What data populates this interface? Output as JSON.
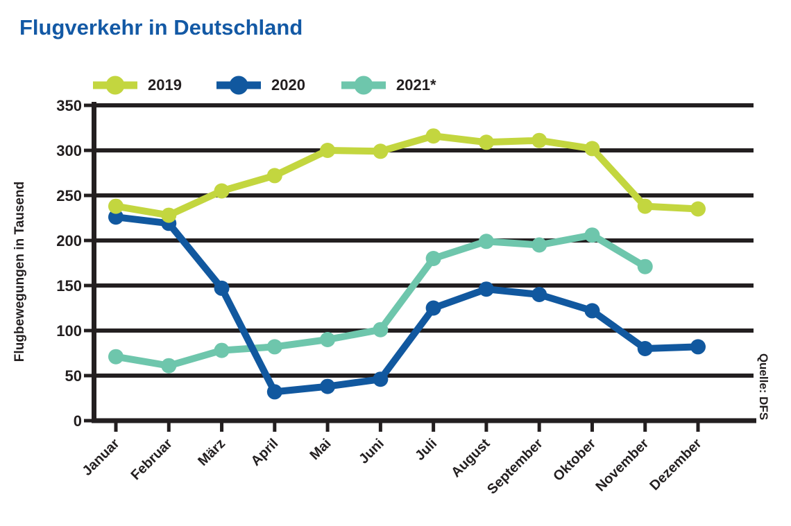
{
  "title": "Flugverkehr in Deutschland",
  "y_axis_title": "Flugbewegungen in Tausend",
  "source_note": "Quelle: DFS",
  "colors": {
    "title_blue": "#1359A5",
    "dark": "#231F20",
    "series_2019": "#C3D63F",
    "series_2020": "#11589F",
    "series_2021": "#6EC6AC"
  },
  "legend": [
    {
      "label": "2019",
      "color": "#C3D63F"
    },
    {
      "label": "2020",
      "color": "#11589F"
    },
    {
      "label": "2021*",
      "color": "#6EC6AC"
    }
  ],
  "chart_data": {
    "type": "line",
    "title": "Flugverkehr in Deutschland",
    "categories": [
      "Januar",
      "Februar",
      "März",
      "April",
      "Mai",
      "Juni",
      "Juli",
      "August",
      "September",
      "Oktober",
      "November",
      "Dezember"
    ],
    "series": [
      {
        "name": "2019",
        "color": "#C3D63F",
        "values": [
          238,
          228,
          255,
          272,
          300,
          299,
          316,
          309,
          311,
          302,
          238,
          235
        ]
      },
      {
        "name": "2020",
        "color": "#11589F",
        "values": [
          226,
          219,
          147,
          32,
          38,
          46,
          125,
          146,
          140,
          122,
          80,
          82
        ]
      },
      {
        "name": "2021*",
        "color": "#6EC6AC",
        "values": [
          71,
          61,
          78,
          82,
          90,
          101,
          180,
          199,
          195,
          206,
          171
        ]
      }
    ],
    "xlabel": "",
    "ylabel": "Flugbewegungen in Tausend",
    "ylim": [
      0,
      350
    ],
    "ytick_step": 50,
    "yticks": [
      "350",
      "300",
      "250",
      "200",
      "150",
      "100",
      "50",
      "0"
    ],
    "grid": true,
    "legend_position": "top"
  }
}
